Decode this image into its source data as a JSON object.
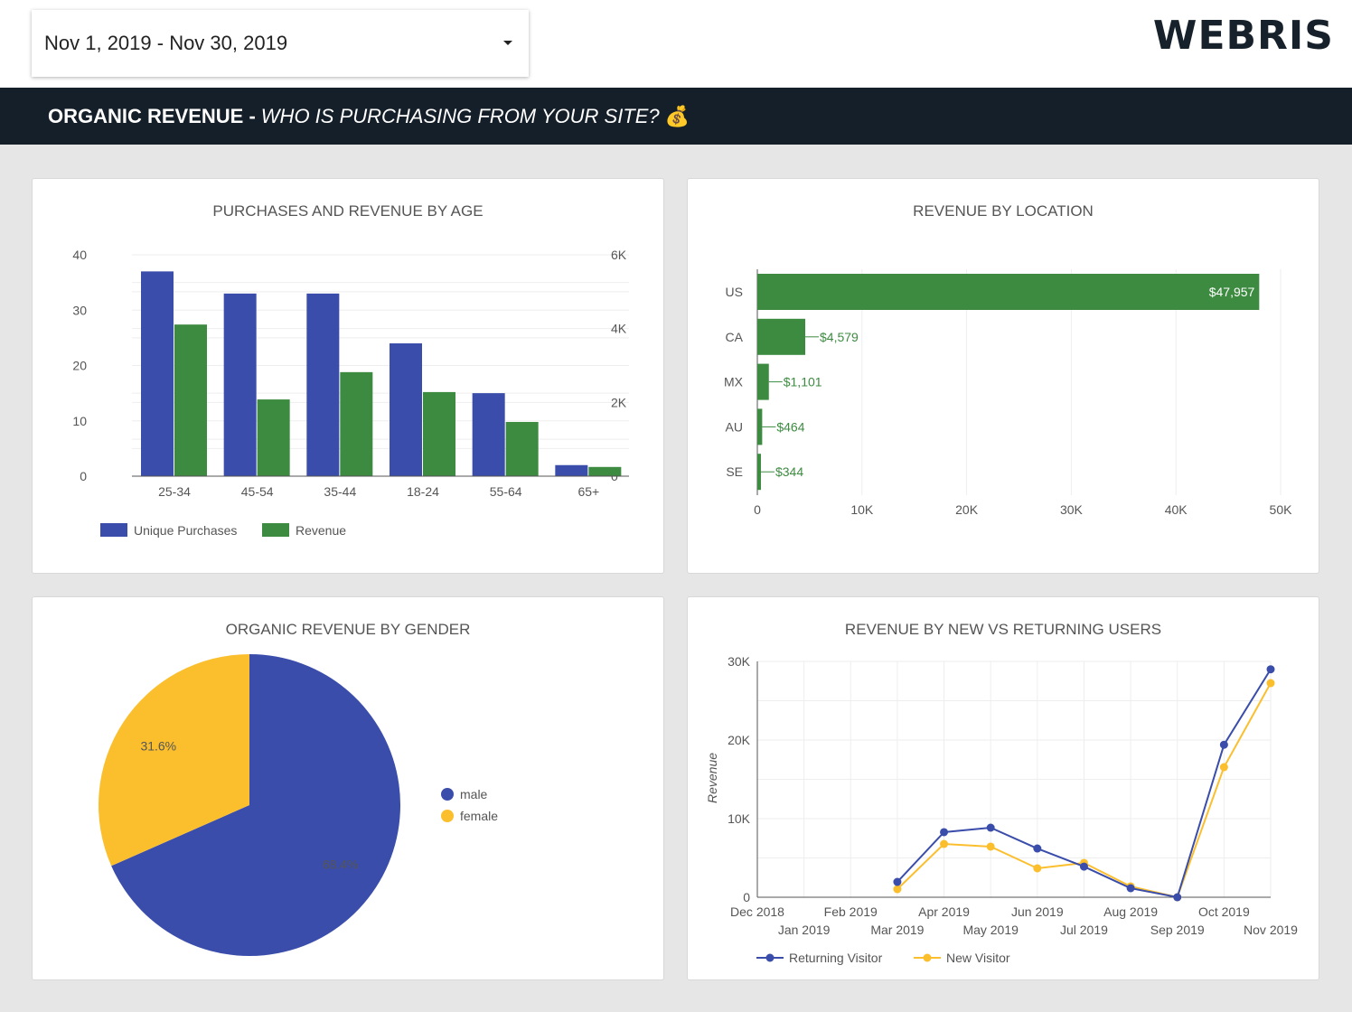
{
  "header": {
    "date_range": "Nov 1, 2019 - Nov 30, 2019",
    "logo": "WEBRIS",
    "banner_bold": "ORGANIC REVENUE -",
    "banner_italic": "WHO IS PURCHASING FROM YOUR SITE?",
    "banner_icon": "money-bag-icon"
  },
  "colors": {
    "blue": "#3a4daa",
    "green": "#3d8b40",
    "yellow": "#fbbf2e",
    "dark": "#151f2a"
  },
  "chart_data": [
    {
      "type": "bar",
      "title": "PURCHASES AND REVENUE BY AGE",
      "categories": [
        "25-34",
        "45-54",
        "35-44",
        "18-24",
        "55-64",
        "65+"
      ],
      "series": [
        {
          "name": "Unique Purchases",
          "axis": "left",
          "values": [
            37,
            33,
            33,
            24,
            15,
            2
          ]
        },
        {
          "name": "Revenue",
          "axis": "right",
          "values": [
            4110,
            2080,
            2820,
            2280,
            1470,
            250
          ]
        }
      ],
      "left_ticks": [
        "0",
        "10",
        "20",
        "30",
        "40"
      ],
      "right_ticks": [
        "0",
        "2K",
        "4K",
        "6K"
      ],
      "ylim_left": [
        0,
        40
      ],
      "ylim_right": [
        0,
        6000
      ],
      "legend": "bottom-left",
      "grid": true
    },
    {
      "type": "bar",
      "orientation": "horizontal",
      "title": "REVENUE BY LOCATION",
      "categories": [
        "US",
        "CA",
        "MX",
        "AU",
        "SE"
      ],
      "values": [
        47957,
        4579,
        1101,
        464,
        344
      ],
      "labels": [
        "$47,957",
        "$4,579",
        "$1,101",
        "$464",
        "$344"
      ],
      "x_ticks": [
        "0",
        "10K",
        "20K",
        "30K",
        "40K",
        "50K"
      ],
      "xlim": [
        0,
        50000
      ],
      "grid": true
    },
    {
      "type": "pie",
      "title": "ORGANIC REVENUE BY GENDER",
      "slices": [
        {
          "name": "male",
          "value": 68.4,
          "label": "68.4%"
        },
        {
          "name": "female",
          "value": 31.6,
          "label": "31.6%"
        }
      ],
      "legend": "right"
    },
    {
      "type": "line",
      "title": "REVENUE BY NEW VS RETURNING USERS",
      "ylabel": "Revenue",
      "x": [
        "Dec 2018",
        "Jan 2019",
        "Feb 2019",
        "Mar 2019",
        "Apr 2019",
        "May 2019",
        "Jun 2019",
        "Jul 2019",
        "Aug 2019",
        "Sep 2019",
        "Oct 2019",
        "Nov 2019"
      ],
      "series": [
        {
          "name": "Returning Visitor",
          "values": [
            null,
            null,
            null,
            1950,
            8280,
            8850,
            6200,
            3900,
            1150,
            0,
            19400,
            29000
          ]
        },
        {
          "name": "New Visitor",
          "values": [
            null,
            null,
            null,
            1030,
            6780,
            6440,
            3680,
            4370,
            1380,
            0,
            16550,
            27240
          ]
        }
      ],
      "y_ticks": [
        "0",
        "10K",
        "20K",
        "30K"
      ],
      "ylim": [
        0,
        30000
      ],
      "legend": "bottom-left",
      "grid": true
    }
  ]
}
